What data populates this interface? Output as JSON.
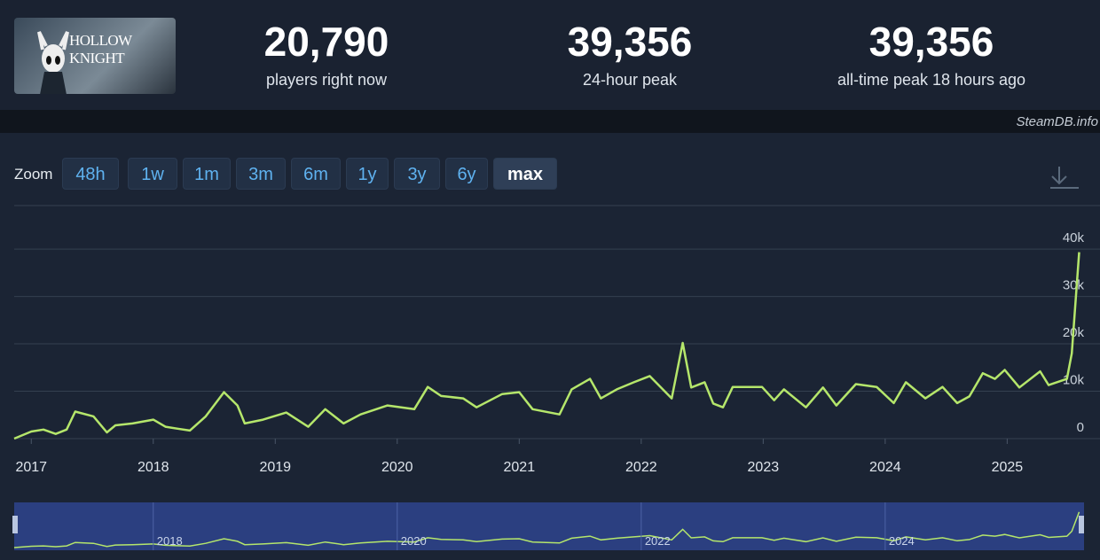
{
  "header": {
    "game_title": "HOLLOW KNIGHT",
    "stats": [
      {
        "value": "20,790",
        "label": "players right now"
      },
      {
        "value": "39,356",
        "label": "24-hour peak"
      },
      {
        "value": "39,356",
        "label": "all-time peak 18 hours ago"
      }
    ],
    "watermark": "SteamDB.info"
  },
  "zoom": {
    "label": "Zoom",
    "buttons": [
      "48h",
      "1w",
      "1m",
      "3m",
      "6m",
      "1y",
      "3y",
      "6y",
      "max"
    ],
    "active": 8
  },
  "chart_data": {
    "type": "line",
    "color": "#b5e66b",
    "x": [
      2016.86,
      2017.0,
      2017.1,
      2017.2,
      2017.29,
      2017.36,
      2017.51,
      2017.62,
      2017.69,
      2017.83,
      2018.0,
      2018.1,
      2018.2,
      2018.3,
      2018.43,
      2018.58,
      2018.69,
      2018.75,
      2018.9,
      2019.09,
      2019.27,
      2019.41,
      2019.56,
      2019.7,
      2019.92,
      2020.14,
      2020.25,
      2020.36,
      2020.54,
      2020.65,
      2020.86,
      2021.0,
      2021.11,
      2021.33,
      2021.43,
      2021.58,
      2021.67,
      2021.8,
      2021.94,
      2022.07,
      2022.25,
      2022.34,
      2022.41,
      2022.52,
      2022.59,
      2022.67,
      2022.75,
      2022.99,
      2023.09,
      2023.17,
      2023.35,
      2023.49,
      2023.6,
      2023.76,
      2023.93,
      2024.07,
      2024.17,
      2024.33,
      2024.47,
      2024.59,
      2024.69,
      2024.8,
      2024.9,
      2024.98,
      2025.1,
      2025.27,
      2025.34,
      2025.49,
      2025.53,
      2025.59
    ],
    "values": [
      0,
      1500,
      1900,
      1000,
      1900,
      5700,
      4700,
      1300,
      2800,
      3200,
      4000,
      2500,
      2100,
      1700,
      4700,
      9800,
      7000,
      3200,
      4000,
      5500,
      2500,
      6200,
      3200,
      5100,
      7000,
      6200,
      10900,
      9000,
      8500,
      6600,
      9400,
      9800,
      6200,
      5100,
      10400,
      12600,
      8500,
      10400,
      11900,
      13200,
      8500,
      20200,
      10800,
      11900,
      7400,
      6600,
      10900,
      10900,
      8100,
      10400,
      6600,
      10800,
      7000,
      11500,
      10900,
      7500,
      11900,
      8500,
      10900,
      7500,
      8900,
      13800,
      12600,
      14500,
      10800,
      14200,
      11300,
      12600,
      18000,
      39356
    ],
    "xlim": [
      2016.86,
      2025.63
    ],
    "xticks": [
      2017,
      2018,
      2019,
      2020,
      2021,
      2022,
      2023,
      2024,
      2025
    ],
    "ylim": [
      0,
      49000
    ],
    "yticks": [
      0,
      {
        "value": 10000,
        "label": "10k"
      },
      {
        "value": 20000,
        "label": "20k"
      },
      {
        "value": 30000,
        "label": "30k"
      },
      {
        "value": 40000,
        "label": "40k"
      }
    ],
    "grid": true,
    "navigator_ticks": [
      2018,
      2020,
      2022,
      2024
    ]
  }
}
